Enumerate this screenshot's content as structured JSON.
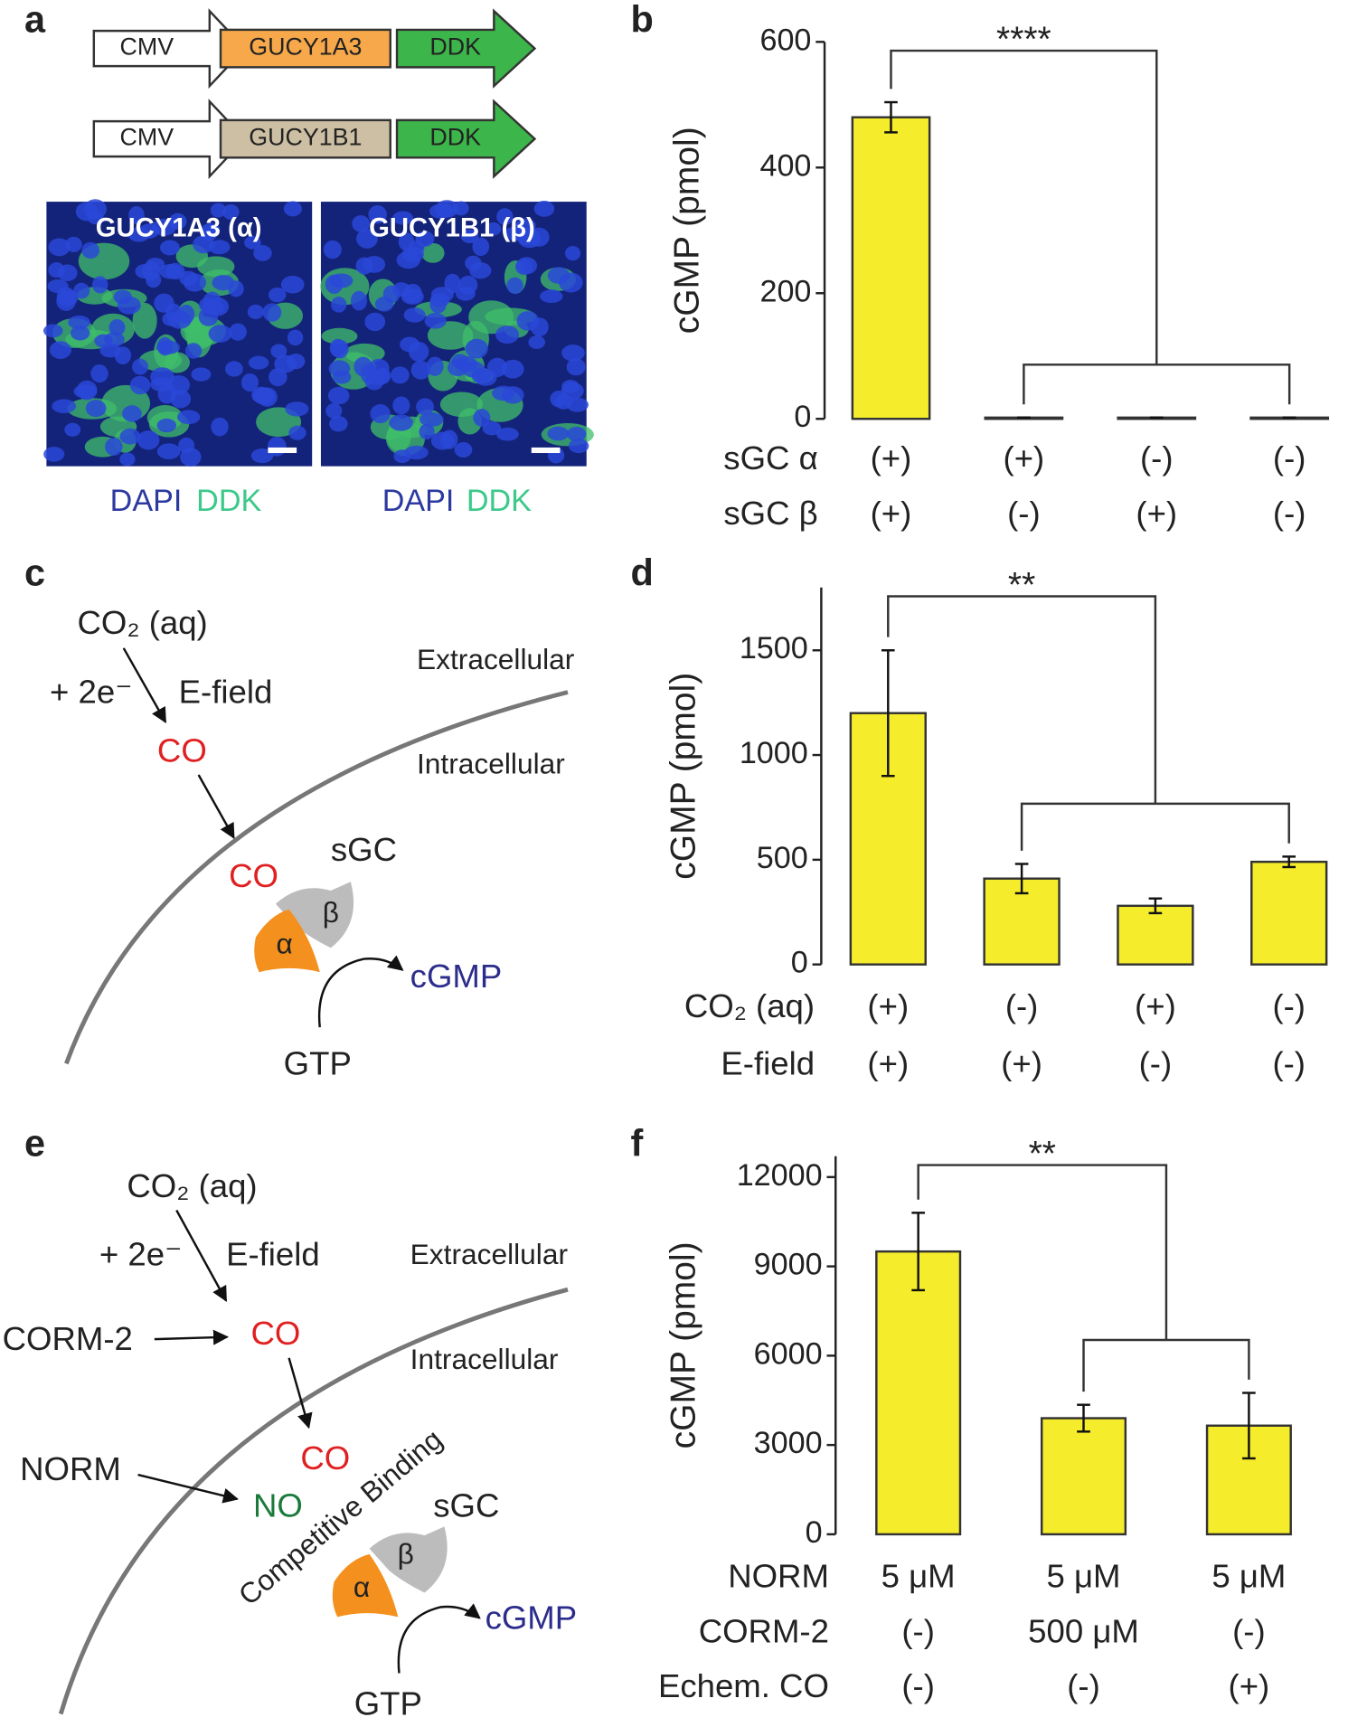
{
  "panel_labels": [
    "a",
    "b",
    "c",
    "d",
    "e",
    "f"
  ],
  "panel_a": {
    "constructs": [
      [
        "CMV",
        "GUCY1A3",
        "DDK"
      ],
      [
        "CMV",
        "GUCY1B1",
        "DDK"
      ]
    ],
    "images": [
      {
        "title": "GUCY1A3 (α)",
        "stain": [
          "DAPI",
          "DDK"
        ]
      },
      {
        "title": "GUCY1B1 (β)",
        "stain": [
          "DAPI",
          "DDK"
        ]
      }
    ]
  },
  "panel_c": {
    "co2": "CO₂ (aq)",
    "electrons": "+ 2e⁻",
    "efield": "E-field",
    "co_out": "CO",
    "extracellular": "Extracellular",
    "intracellular": "Intracellular",
    "co_in": "CO",
    "sgc": "sGC",
    "alpha": "α",
    "beta": "β",
    "product": "cGMP",
    "substrate": "GTP"
  },
  "panel_e": {
    "co2": "CO₂ (aq)",
    "electrons": "+ 2e⁻",
    "efield": "E-field",
    "corm": "CORM-2",
    "co_out": "CO",
    "extracellular": "Extracellular",
    "intracellular": "Intracellular",
    "co_in": "CO",
    "norm": "NORM",
    "no": "NO",
    "competitive": "Competitive Binding",
    "sgc": "sGC",
    "alpha": "α",
    "beta": "β",
    "product": "cGMP",
    "substrate": "GTP"
  },
  "chart_data": [
    {
      "type": "bar",
      "y_label": "cGMP (pmol)",
      "color": "#f5ec2b",
      "significance": "****",
      "values": [
        480,
        2,
        2,
        2
      ],
      "errors": [
        24,
        0,
        0,
        0
      ],
      "condition_rows": [
        {
          "name": "sGC α",
          "labels": [
            "(+)",
            "(+)",
            "(-)",
            "(-)"
          ]
        },
        {
          "name": "sGC β",
          "labels": [
            "(+)",
            "(-)",
            "(+)",
            "(-)"
          ]
        }
      ],
      "ylim": [
        0,
        600
      ],
      "yticks": [
        0,
        200,
        400,
        600
      ]
    },
    {
      "type": "bar",
      "y_label": "cGMP (pmol)",
      "color": "#f5ec2b",
      "significance": "**",
      "values": [
        1200,
        410,
        280,
        490
      ],
      "errors": [
        300,
        70,
        35,
        25
      ],
      "condition_rows": [
        {
          "name": "CO₂ (aq)",
          "labels": [
            "(+)",
            "(-)",
            "(+)",
            "(-)"
          ]
        },
        {
          "name": "E-field",
          "labels": [
            "(+)",
            "(+)",
            "(-)",
            "(-)"
          ]
        }
      ],
      "ylim": [
        0,
        1800
      ],
      "yticks": [
        0,
        500,
        1000,
        1500
      ]
    },
    {
      "type": "bar",
      "y_label": "cGMP (pmol)",
      "color": "#f5ec2b",
      "significance": "**",
      "values": [
        9500,
        3900,
        3650
      ],
      "errors": [
        1300,
        450,
        1100
      ],
      "condition_rows": [
        {
          "name": "NORM",
          "labels": [
            "5 μM",
            "5 μM",
            "5 μM"
          ]
        },
        {
          "name": "CORM-2",
          "labels": [
            "(-)",
            "500 μM",
            "(-)"
          ]
        },
        {
          "name": "Echem. CO",
          "labels": [
            "(-)",
            "(-)",
            "(+)"
          ]
        }
      ],
      "ylim": [
        0,
        12700
      ],
      "yticks": [
        0,
        3000,
        6000,
        9000,
        12000
      ]
    }
  ]
}
